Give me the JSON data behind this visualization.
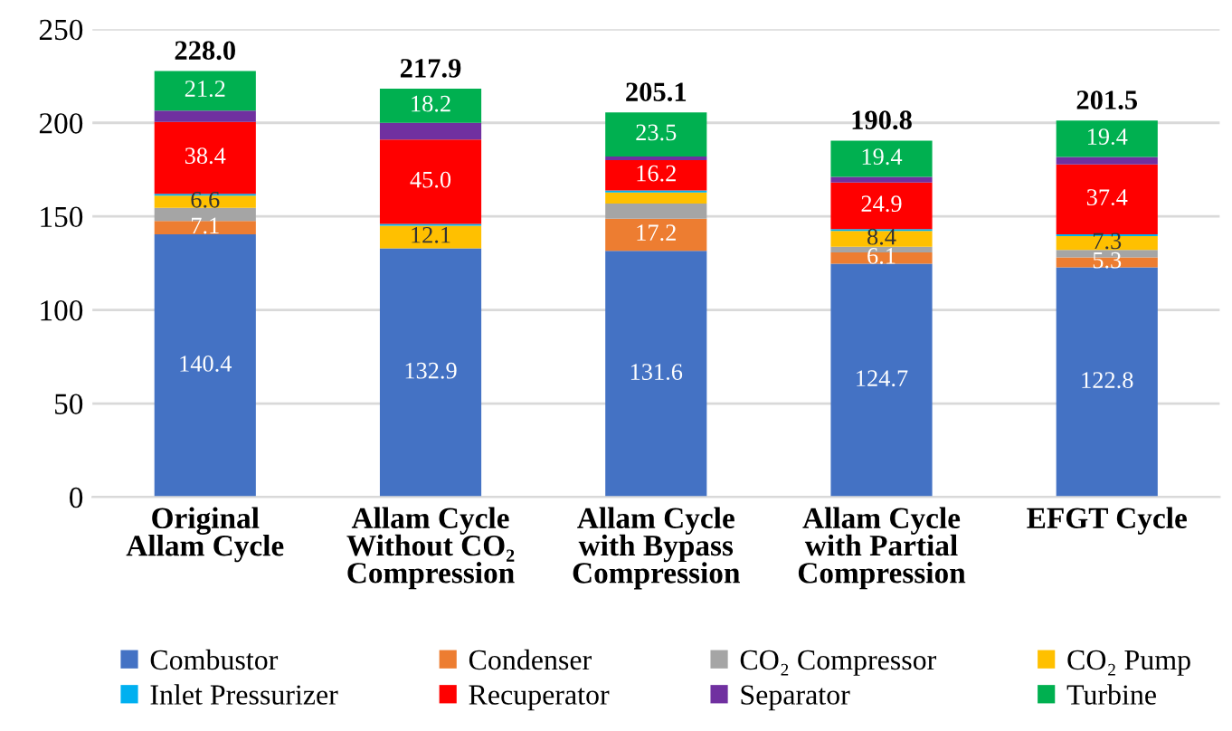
{
  "chart_data": {
    "type": "bar",
    "stacked": true,
    "categories": [
      "Original Allam Cycle",
      "Allam Cycle Without CO₂ Compression",
      "Allam Cycle with Bypass Compression",
      "Allam Cycle with Partial Compression",
      "EFGT Cycle"
    ],
    "series": [
      {
        "name": "Combustor",
        "color": "#4472c4",
        "values": [
          140.4,
          132.9,
          131.6,
          124.7,
          122.8
        ],
        "value_labels": [
          "140.4",
          "132.9",
          "131.6",
          "124.7",
          "122.8"
        ]
      },
      {
        "name": "Condenser",
        "color": "#ed7d31",
        "values": [
          7.1,
          0,
          17.2,
          6.1,
          5.3
        ],
        "value_labels": [
          "7.1",
          null,
          "17.2",
          "6.1",
          "5.3"
        ]
      },
      {
        "name": "CO₂ Compressor",
        "color": "#a5a5a5",
        "values": [
          7,
          0,
          8,
          3,
          4
        ],
        "value_labels": [
          null,
          null,
          null,
          null,
          null
        ]
      },
      {
        "name": "CO₂ Pump",
        "color": "#ffc000",
        "values": [
          6.6,
          12.1,
          6,
          8.4,
          7.3
        ],
        "value_labels": [
          "6.6",
          "12.1",
          null,
          "8.4",
          "7.3"
        ]
      },
      {
        "name": "Inlet Pressurizer",
        "color": "#00b0f0",
        "values": [
          1,
          1,
          1,
          1,
          1
        ],
        "value_labels": [
          null,
          null,
          null,
          null,
          null
        ]
      },
      {
        "name": "Recuperator",
        "color": "#ff0000",
        "values": [
          38.4,
          45.0,
          16.2,
          24.9,
          37.4
        ],
        "value_labels": [
          "38.4",
          "45.0",
          "16.2",
          "24.9",
          "37.4"
        ]
      },
      {
        "name": "Separator",
        "color": "#7030a0",
        "values": [
          6,
          9,
          2,
          3,
          4
        ],
        "value_labels": [
          null,
          null,
          null,
          null,
          null
        ]
      },
      {
        "name": "Turbine",
        "color": "#00b050",
        "values": [
          21.2,
          18.2,
          23.5,
          19.4,
          19.4
        ],
        "value_labels": [
          "21.2",
          "18.2",
          "23.5",
          "19.4",
          "19.4"
        ]
      }
    ],
    "totals": [
      "228.0",
      "217.9",
      "205.1",
      "190.8",
      "201.5"
    ],
    "ylim": [
      0,
      250
    ],
    "yticks": [
      0,
      50,
      100,
      150,
      200,
      250
    ],
    "grid": "y",
    "legend": "bottom"
  }
}
